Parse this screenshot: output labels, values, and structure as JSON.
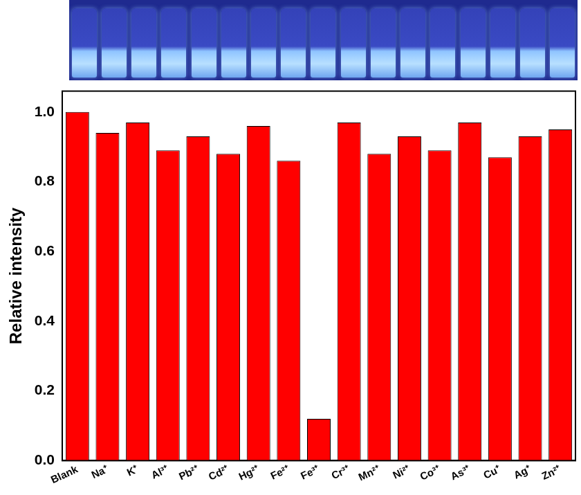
{
  "chart_data": {
    "type": "bar",
    "y_label": "Relative intensity",
    "categories": [
      "Blank",
      "Na⁺",
      "K⁺",
      "Al³⁺",
      "Pb²⁺",
      "Cd²⁺",
      "Hg²⁺",
      "Fe²⁺",
      "Fe³⁺",
      "Cr³⁺",
      "Mn²⁺",
      "Ni²⁺",
      "Co³⁺",
      "As³⁺",
      "Cu⁺",
      "Ag⁺",
      "Zn²⁺"
    ],
    "values": [
      1.0,
      0.94,
      0.97,
      0.89,
      0.93,
      0.88,
      0.96,
      0.86,
      0.12,
      0.97,
      0.88,
      0.93,
      0.89,
      0.97,
      0.87,
      0.93,
      0.95
    ],
    "color": "#ff0000",
    "ylim": [
      0,
      1.06
    ],
    "yticks": [
      {
        "value": 0,
        "label": "0.0"
      },
      0.2,
      0.4,
      0.6,
      0.8,
      {
        "value": 1,
        "label": "1.0"
      }
    ],
    "grid": false
  }
}
